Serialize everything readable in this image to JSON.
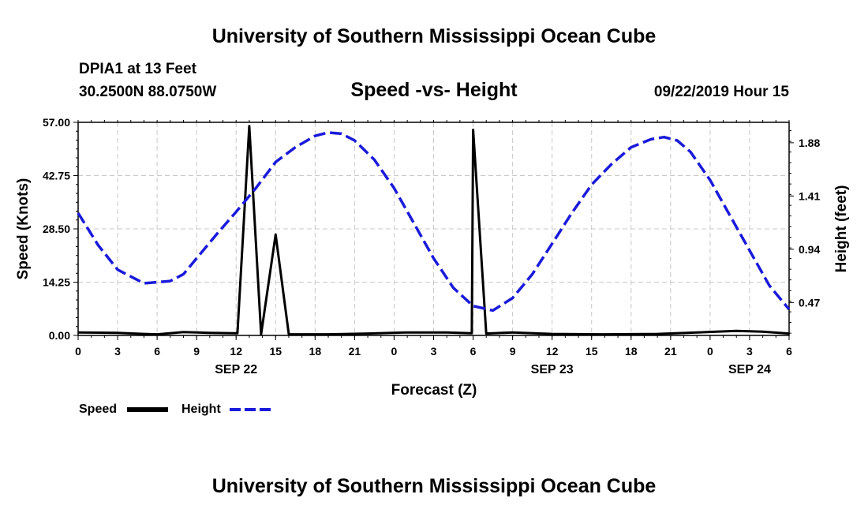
{
  "header": {
    "title": "University of Southern Mississippi Ocean Cube",
    "station": "DPIA1 at 13 Feet",
    "location": "30.2500N 88.0750W",
    "chart_title": "Speed -vs- Height",
    "datetime": "09/22/2019 Hour 15"
  },
  "footer": {
    "title": "University of Southern Mississippi Ocean Cube"
  },
  "legend": {
    "speed_label": "Speed",
    "height_label": "Height",
    "speed_color": "#000000",
    "height_color": "#1a1adb"
  },
  "chart_data": {
    "type": "line",
    "title": "Speed -vs- Height",
    "xlabel": "Forecast (Z)",
    "ylabel_left": "Speed (Knots)",
    "ylabel_right": "Height (feet)",
    "x_range_hours": [
      0,
      54
    ],
    "x_ticks": [
      {
        "h": 0,
        "label": "0"
      },
      {
        "h": 3,
        "label": "3"
      },
      {
        "h": 6,
        "label": "6"
      },
      {
        "h": 9,
        "label": "9"
      },
      {
        "h": 12,
        "label": "12"
      },
      {
        "h": 15,
        "label": "15"
      },
      {
        "h": 18,
        "label": "18"
      },
      {
        "h": 21,
        "label": "21"
      },
      {
        "h": 24,
        "label": "0"
      },
      {
        "h": 27,
        "label": "3"
      },
      {
        "h": 30,
        "label": "6"
      },
      {
        "h": 33,
        "label": "9"
      },
      {
        "h": 36,
        "label": "12"
      },
      {
        "h": 39,
        "label": "15"
      },
      {
        "h": 42,
        "label": "18"
      },
      {
        "h": 45,
        "label": "21"
      },
      {
        "h": 48,
        "label": "0"
      },
      {
        "h": 51,
        "label": "3"
      },
      {
        "h": 54,
        "label": "6"
      }
    ],
    "date_labels": [
      {
        "h": 12,
        "label": "SEP 22"
      },
      {
        "h": 36,
        "label": "SEP 23"
      },
      {
        "h": 51,
        "label": "SEP 24"
      }
    ],
    "y_left": {
      "min": 0,
      "max": 57,
      "ticks": [
        "0.00",
        "14.25",
        "28.50",
        "42.75",
        "57.00"
      ],
      "tick_values": [
        0,
        14.25,
        28.5,
        42.75,
        57
      ]
    },
    "y_right": {
      "min": 0.18,
      "max": 2.06,
      "ticks": [
        "0.47",
        "0.94",
        "1.41",
        "1.88"
      ],
      "tick_values": [
        0.47,
        0.94,
        1.41,
        1.88
      ]
    },
    "series": [
      {
        "name": "Speed",
        "axis": "left",
        "style": "solid",
        "points": [
          [
            0,
            0.8
          ],
          [
            3,
            0.7
          ],
          [
            5,
            0.4
          ],
          [
            6,
            0.3
          ],
          [
            8,
            0.9
          ],
          [
            10,
            0.7
          ],
          [
            12,
            0.6
          ],
          [
            12.1,
            0.6
          ],
          [
            13,
            56
          ],
          [
            13.9,
            0.3
          ],
          [
            15,
            27
          ],
          [
            16,
            0.3
          ],
          [
            19,
            0.3
          ],
          [
            22,
            0.5
          ],
          [
            25,
            0.8
          ],
          [
            28,
            0.8
          ],
          [
            29.9,
            0.6
          ],
          [
            30,
            55
          ],
          [
            31,
            0.5
          ],
          [
            33,
            0.8
          ],
          [
            36,
            0.4
          ],
          [
            40,
            0.3
          ],
          [
            44,
            0.4
          ],
          [
            47,
            0.8
          ],
          [
            50,
            1.2
          ],
          [
            52,
            1.0
          ],
          [
            54,
            0.5
          ]
        ]
      },
      {
        "name": "Height",
        "axis": "right",
        "style": "dashed",
        "points": [
          [
            0,
            1.26
          ],
          [
            1.5,
            0.98
          ],
          [
            3,
            0.76
          ],
          [
            5,
            0.64
          ],
          [
            7,
            0.66
          ],
          [
            8,
            0.72
          ],
          [
            9,
            0.86
          ],
          [
            10.5,
            1.07
          ],
          [
            12,
            1.27
          ],
          [
            13.5,
            1.48
          ],
          [
            15,
            1.71
          ],
          [
            16.5,
            1.84
          ],
          [
            18,
            1.94
          ],
          [
            19,
            1.97
          ],
          [
            20,
            1.96
          ],
          [
            21,
            1.9
          ],
          [
            22.5,
            1.73
          ],
          [
            24,
            1.48
          ],
          [
            25.5,
            1.17
          ],
          [
            27,
            0.86
          ],
          [
            28.5,
            0.6
          ],
          [
            30,
            0.44
          ],
          [
            31.5,
            0.4
          ],
          [
            33,
            0.51
          ],
          [
            34.5,
            0.72
          ],
          [
            36,
            0.99
          ],
          [
            37.5,
            1.26
          ],
          [
            39,
            1.51
          ],
          [
            40.5,
            1.69
          ],
          [
            42,
            1.84
          ],
          [
            43.5,
            1.91
          ],
          [
            44.5,
            1.93
          ],
          [
            45.5,
            1.9
          ],
          [
            46.5,
            1.8
          ],
          [
            48,
            1.55
          ],
          [
            49.5,
            1.24
          ],
          [
            51,
            0.93
          ],
          [
            52.5,
            0.62
          ],
          [
            54,
            0.41
          ]
        ]
      }
    ]
  }
}
